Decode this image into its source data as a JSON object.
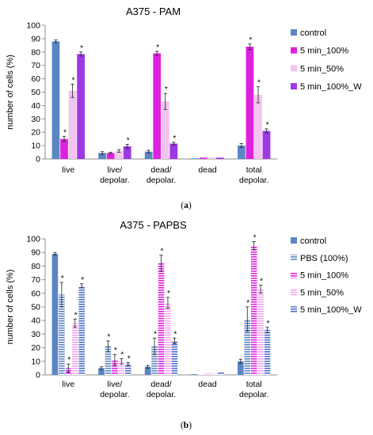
{
  "panels": [
    {
      "label": "(a)",
      "chart_data": {
        "type": "bar",
        "title": "A375 - PAM",
        "ylabel": "number of cells (%)",
        "ylim": [
          0,
          100
        ],
        "yticks": [
          0,
          10,
          20,
          30,
          40,
          50,
          60,
          70,
          80,
          90,
          100
        ],
        "categories": [
          "live",
          "live/\ndepolar.",
          "dead/\ndepolar.",
          "dead",
          "total\ndepolar."
        ],
        "legend_position": "right",
        "series": [
          {
            "name": "control",
            "color": "#5b86c4",
            "pattern": "solid",
            "values": [
              88,
              4.5,
              5.5,
              0.5,
              10
            ],
            "errors": [
              1,
              1,
              1,
              0.2,
              1.5
            ],
            "sig": [
              false,
              false,
              false,
              false,
              false
            ]
          },
          {
            "name": "5 min_100%",
            "color": "#dd22dd",
            "pattern": "solid",
            "values": [
              15,
              4.5,
              79,
              1,
              84
            ],
            "errors": [
              2,
              0.5,
              1.5,
              0.2,
              2
            ],
            "sig": [
              true,
              false,
              true,
              false,
              true
            ]
          },
          {
            "name": "5 min_50%",
            "color": "#f2c4ef",
            "pattern": "solid",
            "values": [
              51,
              6,
              43,
              1,
              48
            ],
            "errors": [
              5,
              1,
              6,
              0.2,
              6
            ],
            "sig": [
              true,
              false,
              true,
              false,
              true
            ]
          },
          {
            "name": "5 min_100%_W",
            "color": "#9d38e3",
            "pattern": "solid",
            "values": [
              78.5,
              9.5,
              11.5,
              1,
              21
            ],
            "errors": [
              1.5,
              1.5,
              1,
              0.2,
              1.5
            ],
            "sig": [
              true,
              true,
              true,
              false,
              true
            ]
          }
        ]
      }
    },
    {
      "label": "(b)",
      "chart_data": {
        "type": "bar",
        "title": "A375 - PAPBS",
        "ylabel": "number of cells (%)",
        "ylim": [
          0,
          100
        ],
        "yticks": [
          0,
          10,
          20,
          30,
          40,
          50,
          60,
          70,
          80,
          90,
          100
        ],
        "categories": [
          "live",
          "live/\ndepolar.",
          "dead/\ndepolar.",
          "dead",
          "total\ndepolar."
        ],
        "legend_position": "right",
        "series": [
          {
            "name": "control",
            "color": "#5b86c4",
            "pattern": "solid",
            "values": [
              89,
              5,
              6,
              0.5,
              10
            ],
            "errors": [
              1,
              1,
              1,
              0.2,
              1.5
            ],
            "sig": [
              false,
              false,
              false,
              false,
              false
            ]
          },
          {
            "name": "PBS (100%)",
            "color": "#5b86c4",
            "pattern": "hstripe",
            "values": [
              59,
              21,
              21,
              0.5,
              41
            ],
            "errors": [
              9,
              4,
              6,
              0.2,
              9
            ],
            "sig": [
              true,
              true,
              true,
              false,
              true
            ]
          },
          {
            "name": "5 min_100%",
            "color": "#dd22dd",
            "pattern": "hstripe",
            "values": [
              5,
              11,
              82,
              1,
              95
            ],
            "errors": [
              3,
              4,
              6,
              0.2,
              3
            ],
            "sig": [
              true,
              true,
              true,
              false,
              true
            ]
          },
          {
            "name": "5 min_50%",
            "color": "#f2a6ec",
            "pattern": "hstripe",
            "values": [
              38,
              10,
              53,
              1,
              63
            ],
            "errors": [
              3,
              2,
              4,
              0.2,
              3
            ],
            "sig": [
              true,
              true,
              true,
              false,
              true
            ]
          },
          {
            "name": "5 min_100%_W",
            "color": "#4f6fc9",
            "pattern": "hstripe",
            "values": [
              65.5,
              8,
              25,
              2,
              33
            ],
            "errors": [
              1.5,
              1,
              2,
              0.2,
              2
            ],
            "sig": [
              true,
              true,
              true,
              false,
              true
            ]
          }
        ]
      }
    }
  ]
}
